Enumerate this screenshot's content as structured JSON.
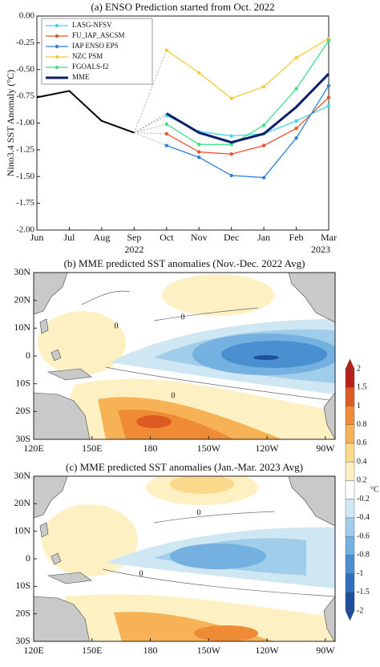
{
  "chart_data": [
    {
      "type": "line",
      "title": "(a) ENSO Prediction started from Oct. 2022",
      "y_label": "Nino3.4  SST Anomaly (°C)",
      "categories": [
        "Jun",
        "Jul",
        "Aug",
        "Sep",
        "Oct",
        "Nov",
        "Dec",
        "Jan",
        "Feb",
        "Mar"
      ],
      "year_labels": [
        "2022",
        "2023"
      ],
      "ylim": [
        -2,
        0
      ],
      "yticks": [
        {
          "value": 0,
          "label": "0.00"
        },
        {
          "value": -0.25,
          "label": "-0.25"
        },
        {
          "value": -0.5,
          "label": "-0.50"
        },
        {
          "value": -0.75,
          "label": "-0.75"
        },
        {
          "value": -1,
          "label": "-1.00"
        },
        {
          "value": -1.25,
          "label": "-1.25"
        },
        {
          "value": -1.5,
          "label": "-1.50"
        },
        {
          "value": -1.75,
          "label": "-1.75"
        },
        {
          "value": -2,
          "label": "-2.00"
        }
      ],
      "observed": {
        "color": "#000000",
        "values": [
          -0.76,
          -0.7,
          -0.98,
          -1.09,
          null,
          null,
          null,
          null,
          null,
          null
        ]
      },
      "series": [
        {
          "name": "LASG-NFSV",
          "color": "#3fd6e8",
          "values": [
            null,
            null,
            null,
            null,
            -0.93,
            -1.08,
            -1.12,
            -1.1,
            -0.98,
            -0.84
          ]
        },
        {
          "name": "FU_IAP_ASCSM",
          "color": "#e8552b",
          "values": [
            null,
            null,
            null,
            null,
            -1.1,
            -1.27,
            -1.29,
            -1.21,
            -1.05,
            -0.76
          ]
        },
        {
          "name": "IAP ENSO EPS",
          "color": "#2f80d8",
          "values": [
            null,
            null,
            null,
            null,
            -1.21,
            -1.32,
            -1.49,
            -1.51,
            -1.14,
            -0.65
          ]
        },
        {
          "name": "NZC PSM",
          "color": "#f2cc3a",
          "values": [
            null,
            null,
            null,
            null,
            -0.32,
            -0.53,
            -0.77,
            -0.66,
            -0.39,
            -0.21
          ]
        },
        {
          "name": "FGOALS-f2",
          "color": "#3ee08a",
          "values": [
            null,
            null,
            null,
            null,
            -1.01,
            -1.2,
            -1.2,
            -1.02,
            -0.68,
            -0.23
          ]
        },
        {
          "name": "MME",
          "color": "#0b1f66",
          "values": [
            null,
            null,
            null,
            null,
            -0.91,
            -1.09,
            -1.18,
            -1.1,
            -0.85,
            -0.54
          ]
        }
      ]
    },
    {
      "type": "map",
      "title": "(b) MME predicted SST anomalies (Nov.-Dec. 2022 Avg)",
      "xlim": [
        120,
        275
      ],
      "ylim": [
        -30,
        30
      ],
      "xticks": [
        {
          "value": 120,
          "label": "120E"
        },
        {
          "value": 150,
          "label": "150E"
        },
        180,
        {
          "value": 210,
          "label": "150W"
        },
        {
          "value": 240,
          "label": "120W"
        },
        {
          "value": 270,
          "label": "90W"
        }
      ],
      "yticks": [
        {
          "value": 30,
          "label": "30N"
        },
        {
          "value": 20,
          "label": "20N"
        },
        {
          "value": 10,
          "label": "10N"
        },
        0,
        {
          "value": -10,
          "label": "10S"
        },
        {
          "value": -20,
          "label": "20S"
        },
        {
          "value": -30,
          "label": "30S"
        }
      ],
      "contour_level": 0
    },
    {
      "type": "map",
      "title": "(c) MME predicted SST anomalies (Jan.-Mar. 2023 Avg)",
      "xlim": [
        120,
        275
      ],
      "ylim": [
        -30,
        30
      ],
      "xticks": [
        {
          "value": 120,
          "label": "120E"
        },
        {
          "value": 150,
          "label": "150E"
        },
        180,
        {
          "value": 210,
          "label": "150W"
        },
        {
          "value": 240,
          "label": "120W"
        },
        {
          "value": 270,
          "label": "90W"
        }
      ],
      "yticks": [
        {
          "value": 30,
          "label": "30N"
        },
        {
          "value": 20,
          "label": "20N"
        },
        {
          "value": 10,
          "label": "10N"
        },
        0,
        {
          "value": -10,
          "label": "10S"
        },
        {
          "value": -20,
          "label": "20S"
        },
        {
          "value": -30,
          "label": "30S"
        }
      ],
      "contour_level": 0
    }
  ],
  "colorbar": {
    "unit": "°C",
    "levels": [
      -2,
      -1.5,
      -1,
      -0.8,
      -0.6,
      -0.4,
      -0.2,
      0.2,
      0.4,
      0.6,
      0.8,
      1,
      1.5,
      2
    ],
    "colors": [
      "#1f4e9e",
      "#2f6fbd",
      "#4a90d0",
      "#74b0e0",
      "#a0cdea",
      "#cfe6f3",
      "#ffffff",
      "#fdf0c2",
      "#fbd98a",
      "#f7b255",
      "#ef8a35",
      "#dd5a22",
      "#b8211b"
    ]
  }
}
